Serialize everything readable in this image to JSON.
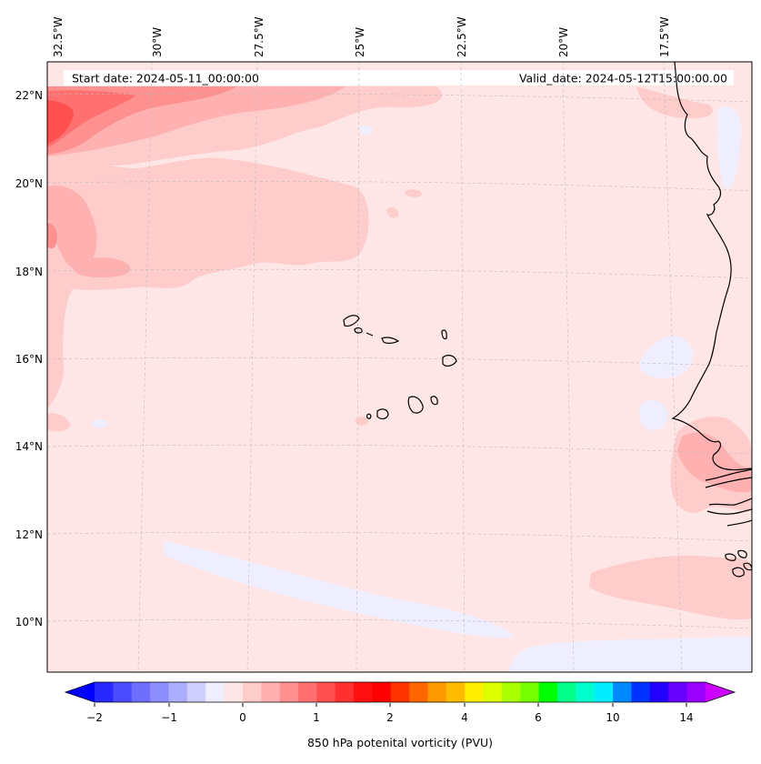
{
  "map": {
    "start_label": "Start date: 2024-05-11_00:00:00",
    "valid_label": "Valid_date: 2024-05-12T15:00:00.00",
    "lon_labels": [
      "32.5°W",
      "30°W",
      "27.5°W",
      "25°W",
      "22.5°W",
      "20°W",
      "17.5°W"
    ],
    "lat_labels": [
      "22°N",
      "20°N",
      "18°N",
      "16°N",
      "14°N",
      "12°N",
      "10°N"
    ],
    "background_color": "#ffe6e6"
  },
  "colorbar": {
    "label": "850 hPa potenital vorticity (PVU)",
    "ticks": [
      "−2",
      "−1",
      "0",
      "1",
      "2",
      "4",
      "6",
      "10",
      "14"
    ],
    "colors": [
      "#0000ff",
      "#2828ff",
      "#4b4bff",
      "#6f6fff",
      "#8e8eff",
      "#adadff",
      "#cfcfff",
      "#eeeeff",
      "#ffe6e6",
      "#ffcccc",
      "#ffb0b0",
      "#ff9090",
      "#ff7070",
      "#ff5050",
      "#ff3030",
      "#ff1010",
      "#ff0000",
      "#ff3300",
      "#ff6600",
      "#ff9900",
      "#ffbb00",
      "#ffee00",
      "#ddff00",
      "#aaff00",
      "#77ff00",
      "#00ff00",
      "#00ff88",
      "#00ffcc",
      "#00eeff",
      "#0088ff",
      "#0033ff",
      "#2200ff",
      "#6600ff",
      "#9900ff",
      "#cc00ff"
    ]
  }
}
